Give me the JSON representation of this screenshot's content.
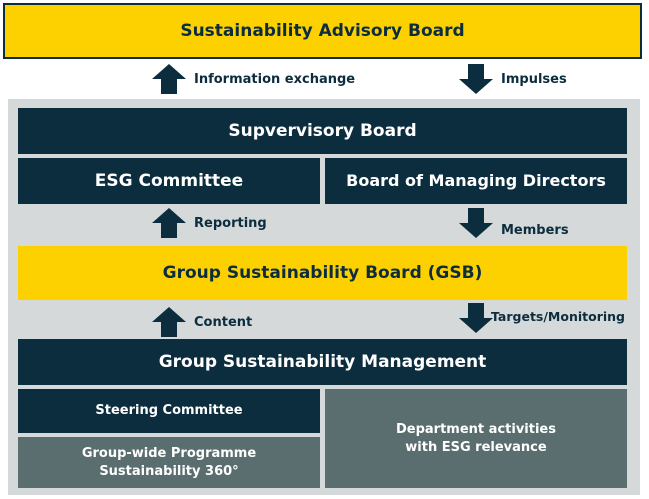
{
  "advisory_board": {
    "label": "Sustainability Advisory Board"
  },
  "top_arrows": {
    "up_label": "Information exchange",
    "down_label": "Impulses"
  },
  "supervisory_board": {
    "label": "Supvervisory Board"
  },
  "esg_committee": {
    "label": "ESG Committee"
  },
  "managing_directors": {
    "label": "Board of Managing Directors"
  },
  "middle_arrows": {
    "up_label": "Reporting",
    "down_label": "Members"
  },
  "gsb": {
    "label": "Group Sustainability Board (GSB)"
  },
  "lower_arrows": {
    "up_label": "Content",
    "down_label": "Targets/Monitoring"
  },
  "management": {
    "label": "Group Sustainability Management"
  },
  "steering_committee": {
    "label": "Steering Committee"
  },
  "programme": {
    "line1": "Group-wide Programme",
    "line2": "Sustainability 360°"
  },
  "department": {
    "line1": "Department activities",
    "line2": "with ESG relevance"
  },
  "colors": {
    "yellow": "#fdd100",
    "navy": "#0c2d3e",
    "slate": "#5a6e6f",
    "panel": "#d5d9d9"
  }
}
